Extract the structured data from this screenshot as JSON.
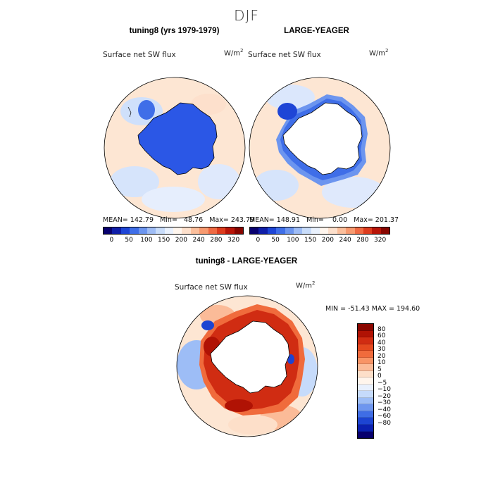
{
  "page": {
    "title": "DJF"
  },
  "panels": {
    "left": {
      "title": "tuning8 (yrs 1979-1979)",
      "variable": "Surface net SW flux",
      "units": "W/m",
      "units_sup": "2",
      "stats": "MEAN= 142.79   Min=   48.76   Max= 243.79"
    },
    "right": {
      "title": "LARGE-YEAGER",
      "variable": "Surface net SW flux",
      "units": "W/m",
      "units_sup": "2",
      "stats": "MEAN= 148.91   Min=    0.00   Max= 201.37"
    },
    "diff": {
      "title": "tuning8 - LARGE-YEAGER",
      "variable": "Surface net SW flux",
      "units": "W/m",
      "units_sup": "2",
      "stats": "MIN = -51.43 MAX = 194.60"
    }
  },
  "colorbar_abs": {
    "ticks": [
      "0",
      "50",
      "100",
      "150",
      "200",
      "240",
      "280",
      "320"
    ],
    "colors": [
      "#08006e",
      "#0f1ea8",
      "#1e45d6",
      "#3f6ee8",
      "#6c95ef",
      "#9ebcf5",
      "#c8dcfa",
      "#e9f1fd",
      "#fff6ee",
      "#fde0cc",
      "#fbbf9c",
      "#f79a70",
      "#ef6a43",
      "#dd3c1e",
      "#b81508",
      "#870500"
    ]
  },
  "colorbar_diff": {
    "ticks": [
      "80",
      "60",
      "40",
      "30",
      "20",
      "10",
      "5",
      "0",
      "−5",
      "−10",
      "−20",
      "−30",
      "−40",
      "−60",
      "−80"
    ],
    "colors": [
      "#8a0600",
      "#b01204",
      "#d02c12",
      "#e4491f",
      "#f06b3c",
      "#f89466",
      "#fbbb98",
      "#fddfc9",
      "#fff5ec",
      "#e8f0fd",
      "#c6dbfb",
      "#9dbdf6",
      "#6e96ef",
      "#3f6de5",
      "#1d44d2",
      "#0b20b0",
      "#08006e"
    ]
  }
}
